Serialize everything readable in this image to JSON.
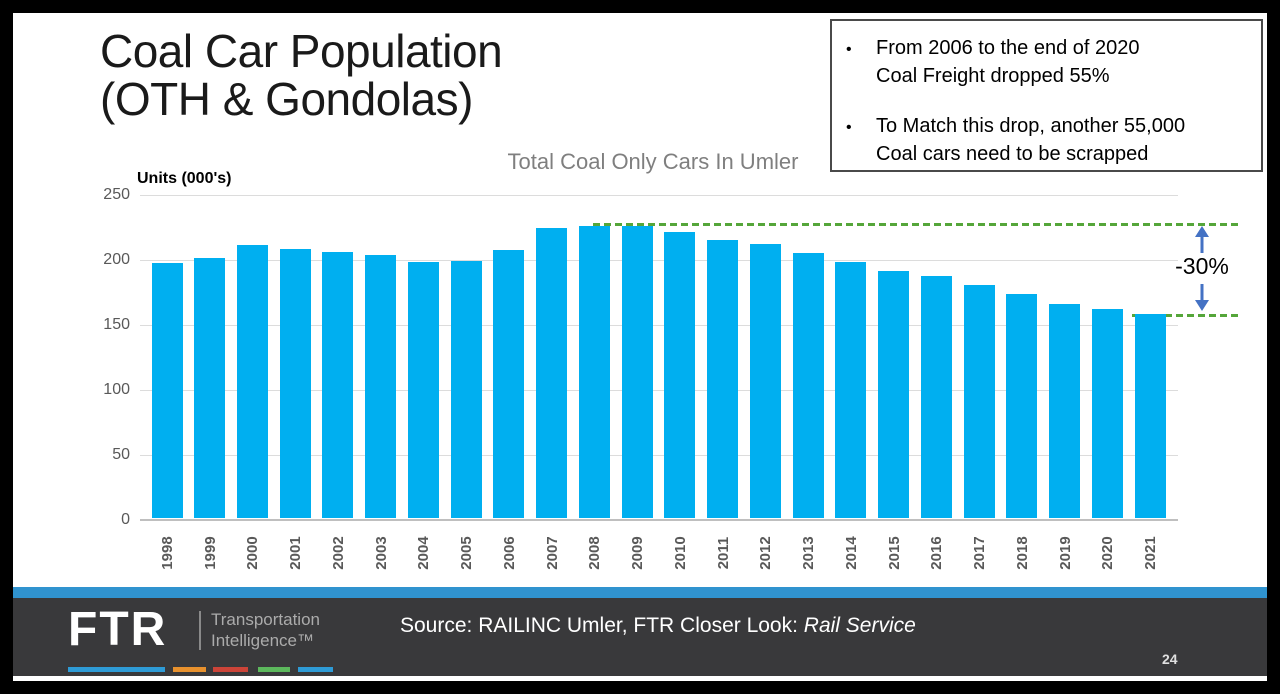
{
  "slide": {
    "title": {
      "line1": "Coal Car Population",
      "line2": "(OTH & Gondolas)"
    }
  },
  "callout": {
    "bullet_char": "•",
    "bullets": [
      {
        "line1": "From 2006 to the end of 2020",
        "line2": "Coal Freight dropped 55%"
      },
      {
        "line1": "To Match this drop, another 55,000",
        "line2": "Coal cars need to be scrapped"
      }
    ]
  },
  "chart_data": {
    "type": "bar",
    "title": "Total Coal Only Cars In Umler",
    "axis_label": "Units (000's)",
    "categories": [
      "1998",
      "1999",
      "2000",
      "2001",
      "2002",
      "2003",
      "2004",
      "2005",
      "2006",
      "2007",
      "2008",
      "2009",
      "2010",
      "2011",
      "2012",
      "2013",
      "2014",
      "2015",
      "2016",
      "2017",
      "2018",
      "2019",
      "2020",
      "2021"
    ],
    "values": [
      196,
      200,
      210,
      207,
      205,
      202,
      197,
      198,
      206,
      223,
      225,
      225,
      220,
      214,
      211,
      204,
      197,
      190,
      186,
      179,
      172,
      165,
      161,
      157
    ],
    "ylim": [
      0,
      250
    ],
    "yticks": [
      0,
      50,
      100,
      150,
      200,
      250
    ],
    "grid": true,
    "bar_color": "#00aff0",
    "annotations": {
      "label": "-30%",
      "upper_ref_value": 228,
      "lower_ref_value": 158,
      "ref_line_color": "#55a63a",
      "arrow_color": "#4472c4"
    }
  },
  "footer": {
    "accent_strip_color": "#3093cf",
    "logo_text": "FTR",
    "logo_sub_line1": "Transportation",
    "logo_sub_line2": "Intelligence™",
    "accent_colors": [
      "#2e9bd6",
      "#e8912d",
      "#cc4438",
      "#5cb85c",
      "#2e9bd6"
    ],
    "source_prefix": "Source: RAILINC Umler, FTR Closer Look: ",
    "source_italic": "Rail Service",
    "page_number": "24"
  }
}
